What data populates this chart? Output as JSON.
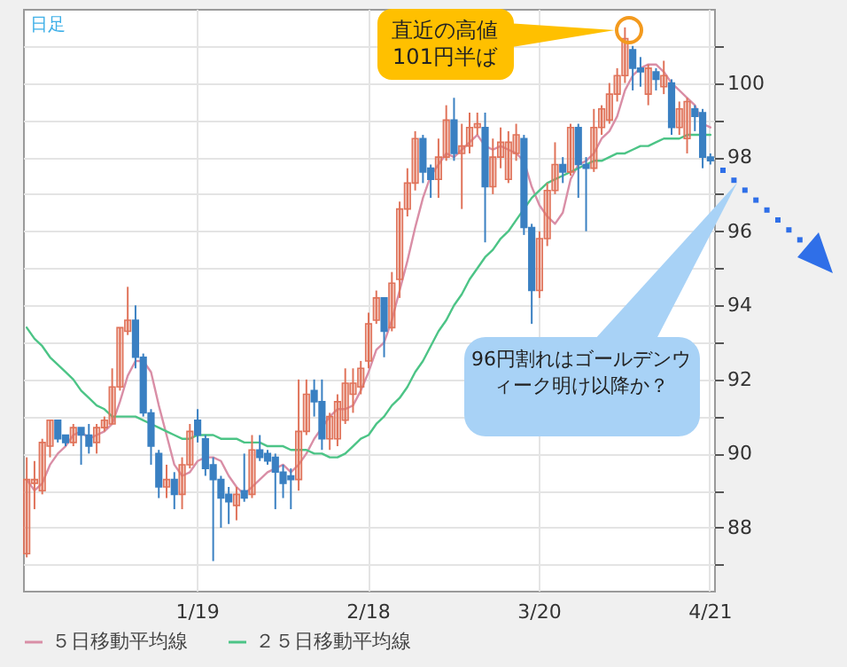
{
  "chart_data": {
    "type": "candlestick",
    "categories": [
      null,
      null,
      null,
      null,
      null,
      null,
      null,
      null,
      null,
      null,
      null,
      null,
      null,
      null,
      null,
      null,
      null,
      null,
      null,
      null,
      null,
      null,
      "1/19",
      null,
      null,
      null,
      null,
      null,
      null,
      null,
      null,
      null,
      null,
      null,
      null,
      null,
      null,
      null,
      null,
      null,
      null,
      null,
      null,
      null,
      "2/18",
      null,
      null,
      null,
      null,
      null,
      null,
      null,
      null,
      null,
      null,
      null,
      null,
      null,
      null,
      null,
      null,
      null,
      null,
      null,
      null,
      null,
      "3/20",
      null,
      null,
      null,
      null,
      null,
      null,
      null,
      null,
      null,
      null,
      null,
      null,
      null,
      null,
      null,
      null,
      null,
      null,
      null,
      null,
      null,
      "4/21"
    ],
    "ohlc": [
      [
        87.3,
        89.9,
        87.2,
        89.3
      ],
      [
        89.2,
        89.8,
        88.5,
        89.3
      ],
      [
        89.0,
        90.4,
        88.9,
        90.3
      ],
      [
        90.2,
        90.9,
        89.9,
        90.9
      ],
      [
        90.9,
        90.9,
        90.3,
        90.4
      ],
      [
        90.5,
        90.5,
        90.2,
        90.3
      ],
      [
        90.3,
        90.8,
        90.2,
        90.7
      ],
      [
        90.7,
        90.7,
        89.7,
        90.5
      ],
      [
        90.5,
        90.8,
        90.0,
        90.2
      ],
      [
        90.3,
        90.8,
        90.0,
        90.7
      ],
      [
        90.7,
        91.0,
        90.6,
        90.9
      ],
      [
        90.8,
        92.3,
        90.8,
        91.8
      ],
      [
        91.8,
        93.4,
        91.7,
        93.4
      ],
      [
        93.3,
        94.5,
        93.2,
        93.6
      ],
      [
        93.6,
        94.0,
        92.3,
        92.6
      ],
      [
        92.6,
        92.7,
        91.0,
        91.1
      ],
      [
        91.1,
        91.2,
        89.7,
        90.2
      ],
      [
        90.0,
        90.1,
        88.8,
        89.1
      ],
      [
        89.1,
        89.7,
        88.8,
        89.3
      ],
      [
        89.3,
        89.5,
        88.5,
        88.9
      ],
      [
        88.9,
        89.9,
        88.5,
        89.7
      ],
      [
        89.7,
        90.8,
        89.6,
        90.6
      ],
      [
        90.9,
        91.2,
        90.3,
        90.5
      ],
      [
        90.4,
        90.5,
        89.4,
        89.6
      ],
      [
        89.7,
        89.9,
        87.1,
        89.3
      ],
      [
        89.3,
        89.4,
        88.0,
        88.8
      ],
      [
        88.9,
        89.1,
        88.1,
        88.7
      ],
      [
        88.6,
        89.1,
        88.2,
        88.9
      ],
      [
        89.0,
        90.0,
        88.7,
        88.8
      ],
      [
        88.9,
        90.5,
        88.8,
        90.1
      ],
      [
        90.1,
        90.5,
        89.8,
        89.9
      ],
      [
        90.0,
        90.1,
        89.7,
        89.8
      ],
      [
        89.9,
        90.0,
        88.5,
        89.5
      ],
      [
        89.5,
        89.7,
        88.8,
        89.2
      ],
      [
        89.4,
        89.6,
        88.5,
        89.3
      ],
      [
        89.3,
        92.0,
        89.0,
        90.6
      ],
      [
        90.6,
        92.0,
        90.5,
        91.6
      ],
      [
        91.7,
        92.0,
        91.0,
        91.4
      ],
      [
        91.4,
        92.0,
        90.1,
        90.4
      ],
      [
        90.4,
        91.1,
        90.1,
        91.0
      ],
      [
        90.4,
        91.6,
        90.2,
        91.4
      ],
      [
        90.9,
        92.3,
        90.8,
        91.9
      ],
      [
        91.6,
        92.3,
        91.1,
        91.9
      ],
      [
        91.8,
        92.5,
        91.6,
        92.3
      ],
      [
        92.5,
        93.8,
        92.3,
        93.5
      ],
      [
        93.6,
        94.4,
        93.5,
        94.2
      ],
      [
        94.2,
        94.2,
        92.6,
        93.3
      ],
      [
        93.4,
        94.9,
        93.3,
        94.6
      ],
      [
        94.7,
        96.8,
        94.2,
        96.6
      ],
      [
        96.6,
        97.7,
        96.4,
        97.3
      ],
      [
        97.3,
        98.7,
        97.1,
        98.5
      ],
      [
        98.5,
        98.6,
        97.3,
        97.6
      ],
      [
        97.7,
        97.8,
        96.9,
        97.4
      ],
      [
        97.4,
        98.5,
        96.9,
        98.0
      ],
      [
        98.0,
        99.4,
        97.9,
        99.0
      ],
      [
        99.0,
        99.6,
        97.9,
        98.1
      ],
      [
        98.1,
        98.9,
        96.6,
        98.3
      ],
      [
        98.3,
        99.2,
        98.1,
        98.8
      ],
      [
        98.8,
        99.2,
        98.6,
        98.9
      ],
      [
        98.8,
        99.2,
        95.7,
        97.2
      ],
      [
        97.2,
        98.5,
        97.0,
        98.0
      ],
      [
        98.0,
        98.8,
        97.7,
        98.4
      ],
      [
        97.4,
        98.7,
        97.3,
        98.4
      ],
      [
        98.1,
        98.9,
        97.9,
        98.6
      ],
      [
        98.5,
        98.6,
        95.9,
        96.1
      ],
      [
        96.1,
        96.2,
        93.5,
        94.4
      ],
      [
        94.4,
        96.0,
        94.2,
        95.8
      ],
      [
        95.8,
        97.3,
        95.6,
        97.1
      ],
      [
        97.1,
        98.4,
        97.0,
        97.8
      ],
      [
        97.8,
        98.0,
        97.3,
        97.6
      ],
      [
        97.6,
        98.9,
        97.5,
        98.8
      ],
      [
        98.8,
        98.9,
        96.9,
        97.8
      ],
      [
        97.8,
        98.0,
        96.0,
        97.7
      ],
      [
        97.7,
        99.3,
        97.6,
        98.8
      ],
      [
        98.8,
        99.4,
        98.6,
        99.3
      ],
      [
        99.0,
        100.0,
        98.9,
        99.7
      ],
      [
        99.7,
        100.4,
        99.5,
        100.2
      ],
      [
        100.2,
        101.5,
        100.0,
        101.2
      ],
      [
        100.9,
        101.0,
        99.8,
        100.4
      ],
      [
        100.4,
        100.7,
        99.9,
        100.3
      ],
      [
        99.7,
        100.5,
        99.4,
        100.4
      ],
      [
        100.3,
        100.4,
        99.8,
        100.1
      ],
      [
        99.9,
        100.6,
        99.7,
        100.2
      ],
      [
        100.0,
        100.1,
        98.6,
        98.8
      ],
      [
        98.8,
        99.5,
        98.6,
        99.3
      ],
      [
        98.5,
        99.6,
        98.1,
        99.5
      ],
      [
        99.3,
        99.4,
        98.7,
        99.1
      ],
      [
        99.2,
        99.3,
        97.7,
        98.0
      ],
      [
        98.0,
        98.1,
        97.8,
        97.9
      ]
    ],
    "colors": [
      "#e0735a",
      "#e0735a",
      "#e0735a",
      "#e0735a",
      "#3a80c2",
      "#3a80c2",
      "#e0735a",
      "#3a80c2",
      "#3a80c2",
      "#e0735a",
      "#e0735a",
      "#e0735a",
      "#e0735a",
      "#e0735a",
      "#3a80c2",
      "#3a80c2",
      "#3a80c2",
      "#3a80c2",
      "#e0735a",
      "#3a80c2",
      "#e0735a",
      "#e0735a",
      "#3a80c2",
      "#3a80c2",
      "#3a80c2",
      "#3a80c2",
      "#3a80c2",
      "#e0735a",
      "#3a80c2",
      "#e0735a",
      "#3a80c2",
      "#3a80c2",
      "#3a80c2",
      "#3a80c2",
      "#3a80c2",
      "#e0735a",
      "#e0735a",
      "#3a80c2",
      "#3a80c2",
      "#e0735a",
      "#e0735a",
      "#e0735a",
      "#e0735a",
      "#e0735a",
      "#e0735a",
      "#e0735a",
      "#3a80c2",
      "#e0735a",
      "#e0735a",
      "#e0735a",
      "#e0735a",
      "#3a80c2",
      "#3a80c2",
      "#e0735a",
      "#e0735a",
      "#3a80c2",
      "#e0735a",
      "#e0735a",
      "#e0735a",
      "#3a80c2",
      "#e0735a",
      "#e0735a",
      "#e0735a",
      "#e0735a",
      "#3a80c2",
      "#3a80c2",
      "#e0735a",
      "#e0735a",
      "#e0735a",
      "#3a80c2",
      "#e0735a",
      "#3a80c2",
      "#3a80c2",
      "#e0735a",
      "#e0735a",
      "#e0735a",
      "#e0735a",
      "#e0735a",
      "#3a80c2",
      "#3a80c2",
      "#e0735a",
      "#3a80c2",
      "#e0735a",
      "#3a80c2",
      "#e0735a",
      "#e0735a",
      "#3a80c2",
      "#3a80c2",
      "#3a80c2"
    ],
    "series": [
      {
        "name": "５日移動平均線",
        "type": "line",
        "color": "#d98ea6",
        "values": [
          89.3,
          89.0,
          89.2,
          89.7,
          90.0,
          90.2,
          90.5,
          90.6,
          90.4,
          90.5,
          90.6,
          90.8,
          91.4,
          92.1,
          92.5,
          92.5,
          92.2,
          91.3,
          90.5,
          89.7,
          89.4,
          89.5,
          89.8,
          89.9,
          89.9,
          89.8,
          89.4,
          89.1,
          88.9,
          89.1,
          89.3,
          89.5,
          89.6,
          89.7,
          89.5,
          89.7,
          90.0,
          90.4,
          90.7,
          91.0,
          91.2,
          91.2,
          91.3,
          91.7,
          92.2,
          92.8,
          93.0,
          93.6,
          94.4,
          95.2,
          96.1,
          96.9,
          97.5,
          97.8,
          98.1,
          98.0,
          98.2,
          98.4,
          98.6,
          98.3,
          98.2,
          98.3,
          98.2,
          98.1,
          97.9,
          97.2,
          96.7,
          96.4,
          96.2,
          96.5,
          97.4,
          97.8,
          97.9,
          98.1,
          98.5,
          98.7,
          99.1,
          99.8,
          100.2,
          100.4,
          100.5,
          100.5,
          100.3,
          100.0,
          99.8,
          99.6,
          99.4,
          98.9,
          98.8
        ]
      },
      {
        "name": "２５日移動平均線",
        "type": "line",
        "color": "#4cc486",
        "values": [
          93.4,
          93.1,
          92.9,
          92.6,
          92.4,
          92.2,
          92.0,
          91.7,
          91.5,
          91.3,
          91.2,
          91.0,
          91.0,
          91.0,
          91.0,
          90.9,
          90.8,
          90.7,
          90.6,
          90.5,
          90.4,
          90.4,
          90.5,
          90.5,
          90.5,
          90.4,
          90.4,
          90.4,
          90.3,
          90.3,
          90.3,
          90.2,
          90.2,
          90.2,
          90.1,
          90.1,
          90.1,
          90.0,
          90.0,
          89.9,
          89.9,
          90.0,
          90.2,
          90.4,
          90.5,
          90.8,
          91.0,
          91.3,
          91.5,
          91.8,
          92.2,
          92.5,
          92.9,
          93.3,
          93.6,
          94.0,
          94.3,
          94.7,
          95.0,
          95.3,
          95.5,
          95.8,
          96.0,
          96.3,
          96.6,
          96.9,
          97.1,
          97.3,
          97.4,
          97.5,
          97.6,
          97.7,
          97.8,
          97.9,
          97.9,
          98.0,
          98.1,
          98.1,
          98.2,
          98.3,
          98.3,
          98.4,
          98.5,
          98.5,
          98.5,
          98.6,
          98.6,
          98.6,
          98.6
        ]
      }
    ],
    "ylim": [
      86.3,
      102.0
    ],
    "yticks": [
      {
        "value": 87,
        "label": null
      },
      88,
      {
        "value": 89,
        "label": null
      },
      90,
      {
        "value": 91,
        "label": null
      },
      92,
      {
        "value": 93,
        "label": null
      },
      94,
      {
        "value": 95,
        "label": null
      },
      96,
      {
        "value": 97,
        "label": null
      },
      98,
      {
        "value": 99,
        "label": null
      },
      100,
      {
        "value": 101,
        "label": null
      }
    ],
    "grid": true,
    "legend": "bottom",
    "annotations": [
      "日足",
      "直近の高値101円半ば",
      "96円割れはゴールデンウィーク明け以降か？"
    ]
  }
}
